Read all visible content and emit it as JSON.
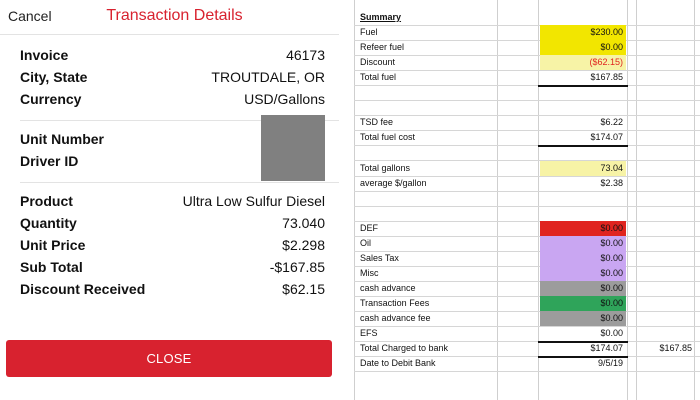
{
  "panel": {
    "cancel_label": "Cancel",
    "title": "Transaction Details",
    "rows_a": [
      {
        "label": "Invoice",
        "value": "46173"
      },
      {
        "label": "City, State",
        "value": "TROUTDALE, OR"
      },
      {
        "label": "Currency",
        "value": "USD/Gallons"
      }
    ],
    "rows_b": [
      {
        "label": "Unit Number",
        "value": ""
      },
      {
        "label": "Driver ID",
        "value": ""
      }
    ],
    "rows_c": [
      {
        "label": "Product",
        "value": "Ultra Low Sulfur Diesel"
      },
      {
        "label": "Quantity",
        "value": "73.040"
      },
      {
        "label": "Unit Price",
        "value": "$2.298"
      },
      {
        "label": "Sub Total",
        "value": "-$167.85"
      },
      {
        "label": "Discount Received",
        "value": "$62.15"
      }
    ],
    "close_label": "CLOSE",
    "accent_color": "#d8222f"
  },
  "sheet": {
    "rows": [
      {
        "label": "Summary",
        "value": "",
        "style": "header"
      },
      {
        "label": "Fuel",
        "value": "$230.00",
        "fill": "#f2e600"
      },
      {
        "label": "Refeer fuel",
        "value": "$0.00",
        "fill": "#f2e600"
      },
      {
        "label": "Discount",
        "value": "($62.15)",
        "fill": "#f7f3a6",
        "value_color": "#e0241f"
      },
      {
        "label": "Total fuel",
        "value": "$167.85",
        "thick_below": true
      },
      {
        "label": "",
        "value": ""
      },
      {
        "label": "",
        "value": ""
      },
      {
        "label": "TSD fee",
        "value": "$6.22"
      },
      {
        "label": "Total fuel cost",
        "value": "$174.07",
        "thick_below": true
      },
      {
        "label": "",
        "value": ""
      },
      {
        "label": "Total gallons",
        "value": "73.04",
        "fill": "#f7f3a6"
      },
      {
        "label": "average $/gallon",
        "value": "$2.38"
      },
      {
        "label": "",
        "value": ""
      },
      {
        "label": "",
        "value": ""
      },
      {
        "label": "DEF",
        "value": "$0.00",
        "fill": "#e0241f"
      },
      {
        "label": "Oil",
        "value": "$0.00",
        "fill": "#c9a6f2"
      },
      {
        "label": "Sales Tax",
        "value": "$0.00",
        "fill": "#c9a6f2"
      },
      {
        "label": "Misc",
        "value": "$0.00",
        "fill": "#c9a6f2"
      },
      {
        "label": "cash advance",
        "value": "$0.00",
        "fill": "#9c9c9c"
      },
      {
        "label": "Transaction Fees",
        "value": "$0.00",
        "fill": "#2fa45a"
      },
      {
        "label": "cash advance fee",
        "value": "$0.00",
        "fill": "#9c9c9c"
      },
      {
        "label": "EFS",
        "value": "$0.00",
        "thick_below": true
      },
      {
        "label": "Total Charged to bank",
        "value": "$174.07",
        "value2": "$167.85",
        "thick_below": true
      },
      {
        "label": "Date to Debit Bank",
        "value": "9/5/19"
      }
    ]
  }
}
